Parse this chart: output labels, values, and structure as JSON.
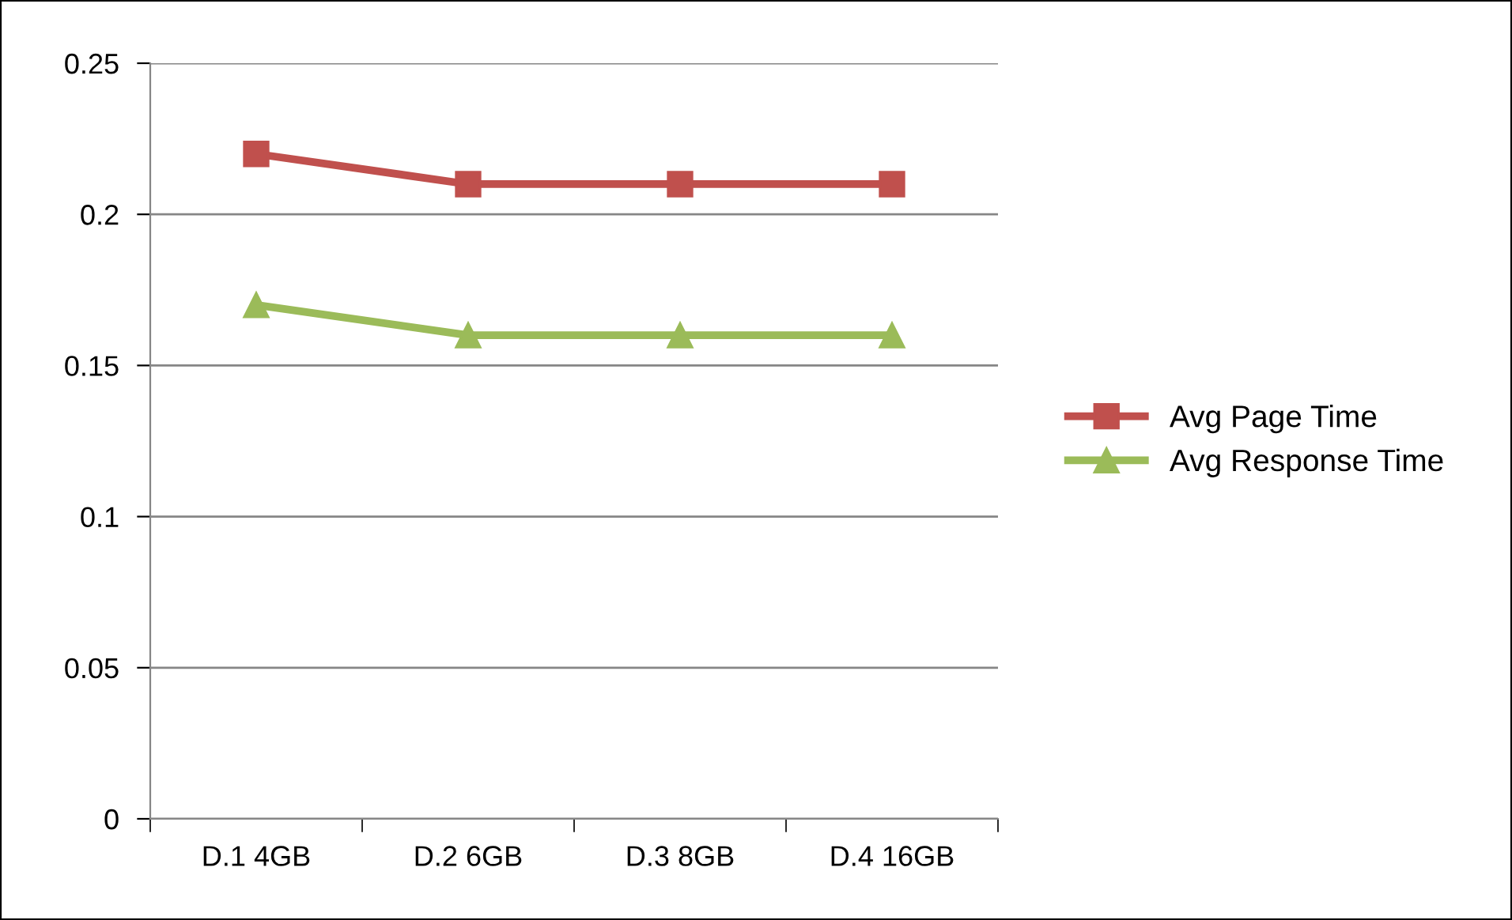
{
  "chart_data": {
    "type": "line",
    "categories": [
      "D.1 4GB",
      "D.2 6GB",
      "D.3 8GB",
      "D.4 16GB"
    ],
    "series": [
      {
        "name": "Avg Page Time",
        "color": "#c0504d",
        "marker": "square",
        "values": [
          0.22,
          0.21,
          0.21,
          0.21
        ]
      },
      {
        "name": "Avg Response Time",
        "color": "#9bbb59",
        "marker": "triangle",
        "values": [
          0.17,
          0.16,
          0.16,
          0.16
        ]
      }
    ],
    "ylim": [
      0,
      0.25
    ],
    "yticks": [
      0,
      0.05,
      0.1,
      0.15,
      0.2,
      0.25
    ],
    "grid": "y",
    "legend": "right",
    "line_style": "solid"
  }
}
